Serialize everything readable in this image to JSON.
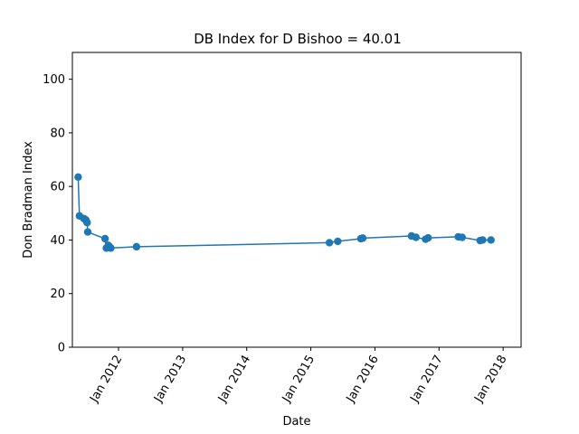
{
  "chart_data": {
    "type": "line",
    "title": "DB Index for D Bishoo = 40.01",
    "xlabel": "Date",
    "ylabel": "Don Bradman Index",
    "ylim": [
      0,
      110
    ],
    "yticks": [
      0,
      20,
      40,
      60,
      80,
      100
    ],
    "xlim": [
      2011.28,
      2018.28
    ],
    "xticks": [
      {
        "label": "Jan 2012",
        "value": 2012.0
      },
      {
        "label": "Jan 2013",
        "value": 2013.0
      },
      {
        "label": "Jan 2014",
        "value": 2014.0
      },
      {
        "label": "Jan 2015",
        "value": 2015.0
      },
      {
        "label": "Jan 2016",
        "value": 2016.0
      },
      {
        "label": "Jan 2017",
        "value": 2017.0
      },
      {
        "label": "Jan 2018",
        "value": 2018.0
      }
    ],
    "grid": false,
    "color": "#1f77b4",
    "series": [
      {
        "name": "D Bishoo",
        "x": [
          2011.37,
          2011.39,
          2011.46,
          2011.49,
          2011.51,
          2011.52,
          2011.79,
          2011.81,
          2011.84,
          2011.86,
          2011.88,
          2012.28,
          2015.29,
          2015.42,
          2015.78,
          2015.81,
          2016.57,
          2016.64,
          2016.79,
          2016.83,
          2017.3,
          2017.36,
          2017.64,
          2017.68,
          2017.81
        ],
        "y": [
          63.5,
          49.0,
          48.0,
          47.5,
          46.5,
          43.0,
          40.5,
          37.0,
          38.0,
          37.5,
          37.0,
          37.5,
          39.0,
          39.5,
          40.5,
          40.7,
          41.5,
          41.0,
          40.3,
          40.8,
          41.2,
          41.0,
          39.8,
          40.0,
          40.0
        ]
      }
    ]
  }
}
